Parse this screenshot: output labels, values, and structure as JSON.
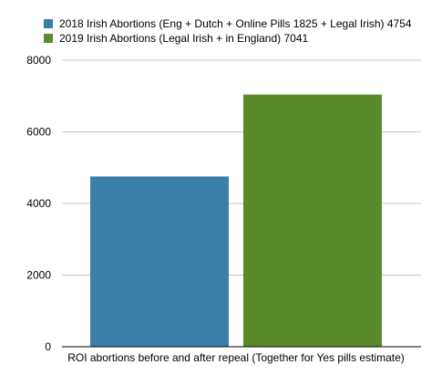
{
  "chart_data": {
    "type": "bar",
    "title": "",
    "xlabel": "ROI abortions before and after repeal (Together for Yes pills estimate)",
    "ylabel": "",
    "ylim": [
      0,
      8000
    ],
    "yticks": [
      "0",
      "2000",
      "4000",
      "6000",
      "8000"
    ],
    "grid": true,
    "legend_position": "top-left",
    "series": [
      {
        "name": "2018 Irish Abortions (Eng + Dutch + Online Pills 1825 + Legal Irish) 4754",
        "value": 4754,
        "color": "#3a7fa8"
      },
      {
        "name": "2019 Irish Abortions (Legal Irish + in England) 7041",
        "value": 7041,
        "color": "#5a8a2a"
      }
    ]
  }
}
